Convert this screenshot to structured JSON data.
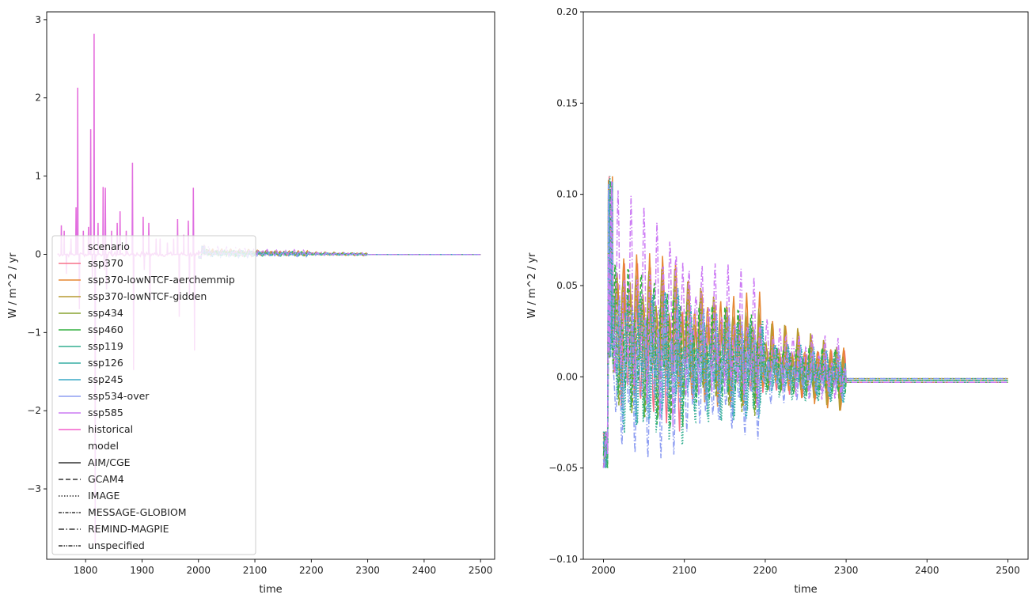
{
  "chart_data": [
    {
      "type": "line",
      "xlabel": "time",
      "ylabel": "W / m^2 / yr",
      "xlim": [
        1731,
        2525
      ],
      "ylim": [
        -3.9,
        3.1
      ],
      "xticks": [
        1800,
        1900,
        2000,
        2100,
        2200,
        2300,
        2400,
        2500
      ],
      "yticks": [
        -3,
        -2,
        -1,
        0,
        1,
        2,
        3
      ],
      "grid": false,
      "legend_position": "lower-left",
      "historical_spikes": [
        {
          "x": 1757,
          "y": 0.37
        },
        {
          "x": 1762,
          "y": 0.3
        },
        {
          "x": 1766,
          "y": -0.25
        },
        {
          "x": 1774,
          "y": 0.2
        },
        {
          "x": 1783,
          "y": 0.6
        },
        {
          "x": 1786,
          "y": 2.13
        },
        {
          "x": 1789,
          "y": -0.7
        },
        {
          "x": 1796,
          "y": 0.3
        },
        {
          "x": 1805,
          "y": 0.35
        },
        {
          "x": 1809,
          "y": 1.6
        },
        {
          "x": 1812,
          "y": -0.3
        },
        {
          "x": 1815,
          "y": 2.82
        },
        {
          "x": 1817,
          "y": -3.7
        },
        {
          "x": 1822,
          "y": 0.4
        },
        {
          "x": 1831,
          "y": 0.86
        },
        {
          "x": 1833,
          "y": -0.2
        },
        {
          "x": 1835,
          "y": 0.85
        },
        {
          "x": 1837,
          "y": -0.45
        },
        {
          "x": 1846,
          "y": 0.3
        },
        {
          "x": 1856,
          "y": 0.4
        },
        {
          "x": 1861,
          "y": 0.55
        },
        {
          "x": 1872,
          "y": 0.3
        },
        {
          "x": 1883,
          "y": 1.17
        },
        {
          "x": 1885,
          "y": -1.48
        },
        {
          "x": 1902,
          "y": 0.48
        },
        {
          "x": 1904,
          "y": -0.2
        },
        {
          "x": 1912,
          "y": 0.4
        },
        {
          "x": 1914,
          "y": -0.6
        },
        {
          "x": 1925,
          "y": 0.2
        },
        {
          "x": 1932,
          "y": 0.2
        },
        {
          "x": 1945,
          "y": 0.15
        },
        {
          "x": 1956,
          "y": 0.2
        },
        {
          "x": 1963,
          "y": 0.45
        },
        {
          "x": 1966,
          "y": -0.8
        },
        {
          "x": 1974,
          "y": 0.25
        },
        {
          "x": 1982,
          "y": 0.43
        },
        {
          "x": 1984,
          "y": -0.55
        },
        {
          "x": 1991,
          "y": 0.85
        },
        {
          "x": 1993,
          "y": -1.23
        },
        {
          "x": 2000,
          "y": 0.05
        },
        {
          "x": 2010,
          "y": 0.08
        }
      ],
      "future_envelope": [
        {
          "x": 2000,
          "y": 0.1
        },
        {
          "x": 2100,
          "y": 0.07
        },
        {
          "x": 2200,
          "y": 0.03
        },
        {
          "x": 2300,
          "y": 0.02
        },
        {
          "x": 2500,
          "y": 0.0
        }
      ]
    },
    {
      "type": "line",
      "xlabel": "time",
      "ylabel": "W / m^2 / yr",
      "xlim": [
        1975,
        2525
      ],
      "ylim": [
        -0.1,
        0.2
      ],
      "xticks": [
        2000,
        2100,
        2200,
        2300,
        2400,
        2500
      ],
      "yticks": [
        -0.1,
        -0.05,
        0.0,
        0.05,
        0.1,
        0.15,
        0.2
      ],
      "ytick_labels": [
        "−0.10",
        "−0.05",
        "0.00",
        "0.05",
        "0.10",
        "0.15",
        "0.20"
      ],
      "grid": false,
      "x_start": 2000,
      "x_end": 2500,
      "cycle_years": 8,
      "post_2300_level": [
        -0.003,
        -0.001
      ],
      "series": [
        {
          "scenario": "ssp370",
          "model": "AIM/CGE",
          "amplitude": [
            0.045,
            0.025,
            0.015
          ],
          "mean": 0.02
        },
        {
          "scenario": "ssp370-lowNTCF-aerchemmip",
          "model": "AIM/CGE",
          "amplitude": [
            0.04,
            0.035,
            0.02
          ],
          "mean": 0.035
        },
        {
          "scenario": "ssp370-lowNTCF-gidden",
          "model": "AIM/CGE",
          "amplitude": [
            0.035,
            0.03,
            0.02
          ],
          "mean": 0.035
        },
        {
          "scenario": "ssp434",
          "model": "GCAM4",
          "amplitude": [
            0.04,
            0.03,
            0.015
          ],
          "mean": 0.02
        },
        {
          "scenario": "ssp460",
          "model": "GCAM4",
          "amplitude": [
            0.045,
            0.03,
            0.015
          ],
          "mean": 0.02
        },
        {
          "scenario": "ssp119",
          "model": "IMAGE",
          "amplitude": [
            0.045,
            0.03,
            0.015
          ],
          "mean": 0.005
        },
        {
          "scenario": "ssp126",
          "model": "IMAGE",
          "amplitude": [
            0.04,
            0.03,
            0.015
          ],
          "mean": 0.01
        },
        {
          "scenario": "ssp245",
          "model": "MESSAGE-GLOBIOM",
          "amplitude": [
            0.04,
            0.03,
            0.015
          ],
          "mean": 0.015
        },
        {
          "scenario": "ssp534-over",
          "model": "REMIND-MAGPIE",
          "amplitude": [
            0.045,
            0.035,
            0.015
          ],
          "mean": 0.0
        },
        {
          "scenario": "ssp585",
          "model": "REMIND-MAGPIE",
          "amplitude": [
            0.06,
            0.04,
            0.02
          ],
          "mean": 0.045
        }
      ]
    }
  ],
  "legend": {
    "scenario_title": "scenario",
    "scenario_items": [
      {
        "label": "ssp370",
        "color": "#f77189"
      },
      {
        "label": "ssp370-lowNTCF-aerchemmip",
        "color": "#e58732"
      },
      {
        "label": "ssp370-lowNTCF-gidden",
        "color": "#b79a31"
      },
      {
        "label": "ssp434",
        "color": "#88a431"
      },
      {
        "label": "ssp460",
        "color": "#33b040"
      },
      {
        "label": "ssp119",
        "color": "#34ae91"
      },
      {
        "label": "ssp126",
        "color": "#36ada4"
      },
      {
        "label": "ssp245",
        "color": "#38a9c5"
      },
      {
        "label": "ssp534-over",
        "color": "#8e9ef2"
      },
      {
        "label": "ssp585",
        "color": "#cc7af4"
      },
      {
        "label": "historical",
        "color": "#f45fcc"
      }
    ],
    "model_title": "model",
    "model_items": [
      {
        "label": "AIM/CGE",
        "dash": "solid"
      },
      {
        "label": "GCAM4",
        "dash": "dashed"
      },
      {
        "label": "IMAGE",
        "dash": "dotted"
      },
      {
        "label": "MESSAGE-GLOBIOM",
        "dash": "dashdot-tight"
      },
      {
        "label": "REMIND-MAGPIE",
        "dash": "dashdot"
      },
      {
        "label": "unspecified",
        "dash": "dashdotdot"
      }
    ]
  }
}
